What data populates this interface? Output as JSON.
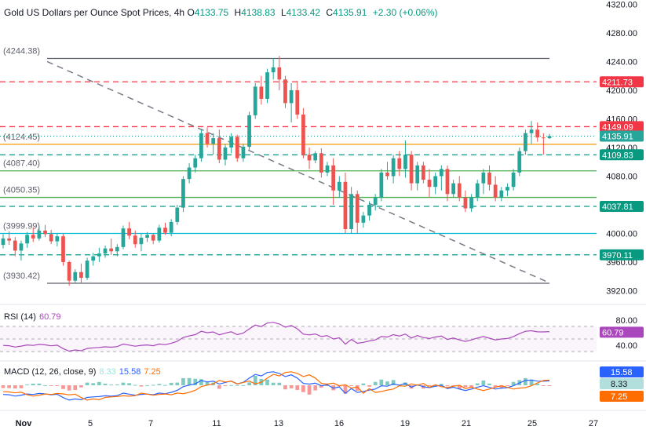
{
  "header": {
    "symbol": "Gold US Dollars per Ounce Spot Prices, 4h",
    "o_label": "O",
    "o": "4133.75",
    "h_label": "H",
    "h": "4138.83",
    "l_label": "L",
    "l": "4133.42",
    "c_label": "C",
    "c": "4135.91",
    "chg": "+2.30 (+0.06%)"
  },
  "colors": {
    "up": "#26a69a",
    "down": "#ef5350",
    "trend": "#787b86",
    "orange": "#f7a21b",
    "green_line": "#4caf50",
    "teal_line": "#00bcd4",
    "red_dash": "#f23645"
  },
  "chart_data": {
    "type": "candlestick",
    "title": "Gold US Dollars per Ounce Spot Prices, 4h",
    "x_ticks": [
      "Nov",
      "5",
      "7",
      "11",
      "13",
      "16",
      "19",
      "21",
      "25",
      "27"
    ],
    "y_ticks": [
      3920,
      3960,
      4000,
      4040,
      4080,
      4120,
      4160,
      4200,
      4240,
      4280,
      4320
    ],
    "ylim": [
      3903,
      4326
    ],
    "last_price": 4135.91,
    "candles": [
      [
        3984,
        3999,
        3979,
        3993
      ],
      [
        3993,
        4003,
        3984,
        3990
      ],
      [
        3990,
        3995,
        3968,
        3976
      ],
      [
        3976,
        3990,
        3962,
        3986
      ],
      [
        3986,
        4002,
        3980,
        3998
      ],
      [
        3998,
        4008,
        3988,
        3993
      ],
      [
        3993,
        4009,
        3990,
        4004
      ],
      [
        4004,
        4012,
        3995,
        3999
      ],
      [
        3999,
        4005,
        3985,
        3989
      ],
      [
        3989,
        4000,
        3982,
        3996
      ],
      [
        3996,
        3999,
        3955,
        3960
      ],
      [
        3960,
        3962,
        3927,
        3934
      ],
      [
        3934,
        3950,
        3930,
        3946
      ],
      [
        3946,
        3958,
        3930,
        3938
      ],
      [
        3938,
        3966,
        3935,
        3962
      ],
      [
        3962,
        3973,
        3955,
        3968
      ],
      [
        3968,
        3980,
        3960,
        3972
      ],
      [
        3972,
        3983,
        3966,
        3979
      ],
      [
        3979,
        3993,
        3970,
        3975
      ],
      [
        3975,
        3985,
        3968,
        3981
      ],
      [
        3981,
        4011,
        3978,
        4007
      ],
      [
        4007,
        4016,
        3992,
        3997
      ],
      [
        3997,
        4004,
        3980,
        3985
      ],
      [
        3985,
        4000,
        3975,
        3994
      ],
      [
        3994,
        4002,
        3988,
        3998
      ],
      [
        3998,
        4000,
        3985,
        3990
      ],
      [
        3990,
        4012,
        3987,
        4008
      ],
      [
        4008,
        4015,
        3998,
        4001
      ],
      [
        4001,
        4020,
        3996,
        4016
      ],
      [
        4016,
        4040,
        4012,
        4036
      ],
      [
        4036,
        4080,
        4030,
        4076
      ],
      [
        4076,
        4098,
        4070,
        4092
      ],
      [
        4092,
        4110,
        4085,
        4105
      ],
      [
        4105,
        4145,
        4100,
        4140
      ],
      [
        4140,
        4148,
        4120,
        4125
      ],
      [
        4125,
        4140,
        4110,
        4133
      ],
      [
        4133,
        4145,
        4098,
        4103
      ],
      [
        4103,
        4125,
        4095,
        4120
      ],
      [
        4120,
        4140,
        4112,
        4135
      ],
      [
        4135,
        4138,
        4100,
        4105
      ],
      [
        4105,
        4125,
        4100,
        4121
      ],
      [
        4121,
        4170,
        4115,
        4165
      ],
      [
        4165,
        4210,
        4160,
        4205
      ],
      [
        4205,
        4220,
        4180,
        4188
      ],
      [
        4188,
        4230,
        4182,
        4225
      ],
      [
        4225,
        4245,
        4215,
        4232
      ],
      [
        4232,
        4248,
        4200,
        4215
      ],
      [
        4215,
        4220,
        4175,
        4182
      ],
      [
        4182,
        4210,
        4155,
        4200
      ],
      [
        4200,
        4213,
        4160,
        4166
      ],
      [
        4166,
        4175,
        4105,
        4110
      ],
      [
        4110,
        4120,
        4090,
        4102
      ],
      [
        4102,
        4115,
        4098,
        4112
      ],
      [
        4112,
        4119,
        4078,
        4085
      ],
      [
        4085,
        4100,
        4080,
        4095
      ],
      [
        4095,
        4105,
        4040,
        4060
      ],
      [
        4060,
        4080,
        4050,
        4072
      ],
      [
        4072,
        4085,
        4000,
        4006
      ],
      [
        4006,
        4065,
        4000,
        4055
      ],
      [
        4055,
        4060,
        4000,
        4015
      ],
      [
        4015,
        4030,
        4008,
        4025
      ],
      [
        4025,
        4045,
        4018,
        4040
      ],
      [
        4040,
        4055,
        4032,
        4050
      ],
      [
        4050,
        4090,
        4045,
        4085
      ],
      [
        4085,
        4100,
        4075,
        4080
      ],
      [
        4080,
        4110,
        4070,
        4105
      ],
      [
        4105,
        4115,
        4080,
        4090
      ],
      [
        4090,
        4130,
        4078,
        4110
      ],
      [
        4110,
        4115,
        4060,
        4070
      ],
      [
        4070,
        4100,
        4060,
        4095
      ],
      [
        4095,
        4100,
        4070,
        4075
      ],
      [
        4075,
        4090,
        4050,
        4065
      ],
      [
        4065,
        4085,
        4055,
        4080
      ],
      [
        4080,
        4095,
        4060,
        4090
      ],
      [
        4090,
        4095,
        4045,
        4055
      ],
      [
        4055,
        4075,
        4050,
        4070
      ],
      [
        4070,
        4080,
        4045,
        4050
      ],
      [
        4050,
        4060,
        4030,
        4035
      ],
      [
        4035,
        4055,
        4030,
        4050
      ],
      [
        4050,
        4075,
        4045,
        4070
      ],
      [
        4070,
        4090,
        4055,
        4085
      ],
      [
        4085,
        4095,
        4060,
        4068
      ],
      [
        4068,
        4080,
        4045,
        4050
      ],
      [
        4050,
        4065,
        4045,
        4060
      ],
      [
        4060,
        4070,
        4052,
        4065
      ],
      [
        4065,
        4090,
        4060,
        4085
      ],
      [
        4085,
        4120,
        4080,
        4115
      ],
      [
        4115,
        4145,
        4110,
        4140
      ],
      [
        4140,
        4157,
        4125,
        4145
      ],
      [
        4145,
        4155,
        4128,
        4134
      ],
      [
        4134,
        4140,
        4110,
        4133
      ],
      [
        4133,
        4139,
        4132,
        4136
      ]
    ],
    "levels": [
      {
        "kind": "gray-solid",
        "value": 4244.38,
        "label": "(4244.38)"
      },
      {
        "kind": "red-dash",
        "value": 4211.73,
        "label": "4211.73"
      },
      {
        "kind": "red-dash",
        "value": 4149.09,
        "label": "4149.09"
      },
      {
        "kind": "orange-solid",
        "value": 4124.45,
        "label": "(4124.45)"
      },
      {
        "kind": "teal-dash",
        "value": 4109.83,
        "label": "4109.83"
      },
      {
        "kind": "green-solid",
        "value": 4087.4,
        "label": "(4087.40)"
      },
      {
        "kind": "green-solid",
        "value": 4050.35,
        "label": "(4050.35)"
      },
      {
        "kind": "teal-dash",
        "value": 4037.81,
        "label": "4037.81"
      },
      {
        "kind": "cyan-solid",
        "value": 3999.99,
        "label": "(3999.99)"
      },
      {
        "kind": "teal-dash",
        "value": 3970.11,
        "label": "3970.11"
      },
      {
        "kind": "gray-solid",
        "value": 3930.42,
        "label": "(3930.42)"
      }
    ],
    "rsi": {
      "label": "RSI (14)",
      "value": "60.79",
      "ticks": [
        80,
        40
      ],
      "value_num": 60.79
    },
    "macd": {
      "label": "MACD (12, 26, close, 9)",
      "hist": "8.33",
      "macd": "15.58",
      "signal": "7.25"
    }
  }
}
